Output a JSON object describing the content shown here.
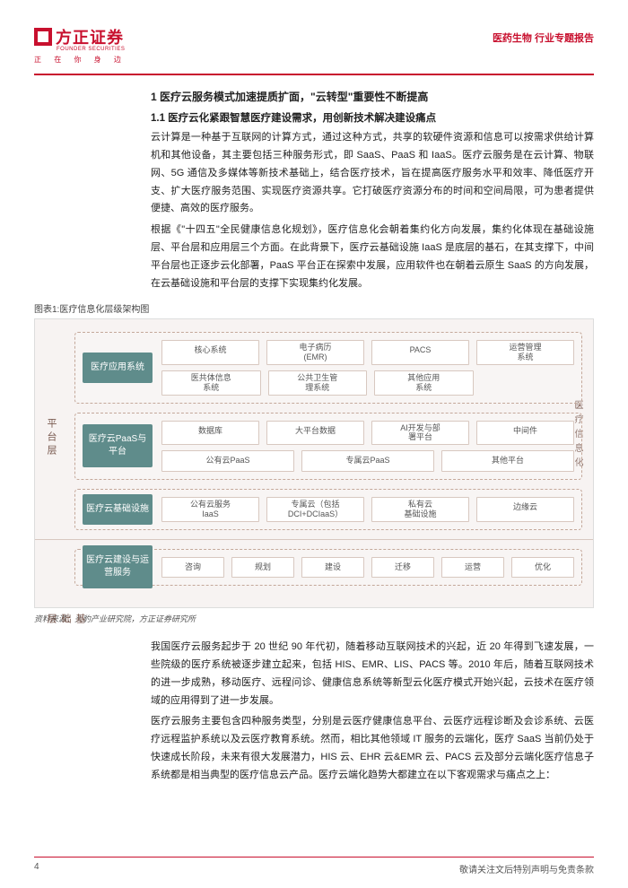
{
  "header": {
    "logo_cn": "方正证券",
    "logo_en": "FOUNDER SECURITIES",
    "tagline": "正 在 你 身 边",
    "right": "医药生物 行业专题报告"
  },
  "section": {
    "h1": "1 医疗云服务模式加速提质扩面，\"云转型\"重要性不断提高",
    "h2": "1.1 医疗云化紧跟智慧医疗建设需求，用创新技术解决建设痛点",
    "p1": "云计算是一种基于互联网的计算方式，通过这种方式，共享的软硬件资源和信息可以按需求供给计算机和其他设备，其主要包括三种服务形式，即 SaaS、PaaS 和 IaaS。医疗云服务是在云计算、物联网、5G 通信及多媒体等新技术基础上，结合医疗技术，旨在提高医疗服务水平和效率、降低医疗开支、扩大医疗服务范围、实现医疗资源共享。它打破医疗资源分布的时间和空间局限，可为患者提供便捷、高效的医疗服务。",
    "p2": "根据《\"十四五\"全民健康信息化规划》，医疗信息化会朝着集约化方向发展，集约化体现在基础设施层、平台层和应用层三个方面。在此背景下，医疗云基础设施 IaaS 是底层的基石，在其支撑下，中间平台层也正逐步云化部署，PaaS 平台正在探索中发展，应用软件也在朝着云原生 SaaS 的方向发展，在云基础设施和平台层的支撑下实现集约化发展。",
    "p3": "我国医疗云服务起步于 20 世纪 90 年代初，随着移动互联网技术的兴起，近 20 年得到飞速发展，一些院级的医疗系统被逐步建立起来，包括 HIS、EMR、LIS、PACS 等。2010 年后，随着互联网技术的进一步成熟，移动医疗、远程问诊、健康信息系统等新型云化医疗模式开始兴起，云技术在医疗领域的应用得到了进一步发展。",
    "p4": "医疗云服务主要包含四种服务类型，分别是云医疗健康信息平台、云医疗远程诊断及会诊系统、云医疗远程监护系统以及云医疗教育系统。然而，相比其他领域 IT 服务的云端化，医疗 SaaS 当前仍处于快速成长阶段，未来有很大发展潜力，HIS 云、EHR 云&EMR 云、PACS 云及部分云端化医疗信息子系统都是相当典型的医疗信息云产品。医疗云端化趋势大都建立在以下客观需求与痛点之上："
  },
  "figure": {
    "title": "图表1:医疗信息化层级架构图",
    "source": "资料来源：头豹产业研究院，方正证券研究所",
    "side_platform": "平台层",
    "side_base": "基础层",
    "side_right": "医疗信息化",
    "tiers": {
      "t1_label": "医疗应用系统",
      "t1r1": [
        "核心系统",
        "电子病历\n(EMR)",
        "PACS",
        "运营管理\n系统"
      ],
      "t1r2": [
        "医共体信息\n系统",
        "公共卫生管\n理系统",
        "其他应用\n系统",
        ""
      ],
      "t2_label": "医疗云PaaS与平台",
      "t2r1": [
        "数据库",
        "大平台数据",
        "AI开发与部\n署平台",
        "中间件"
      ],
      "t2r2": [
        "公有云PaaS",
        "专属云PaaS",
        "其他平台"
      ],
      "t3_label": "医疗云基础设施",
      "t3r1": [
        "公有云服务\nIaaS",
        "专属云（包括\nDCI+DCIaaS）",
        "私有云\n基础设施",
        "边缘云"
      ],
      "t4_label": "医疗云建设与运营服务",
      "t4r1": [
        "咨询",
        "规划",
        "建设",
        "迁移",
        "运营",
        "优化"
      ]
    }
  },
  "footer": {
    "page": "4",
    "disclaimer": "敬请关注文后特别声明与免责条款"
  }
}
